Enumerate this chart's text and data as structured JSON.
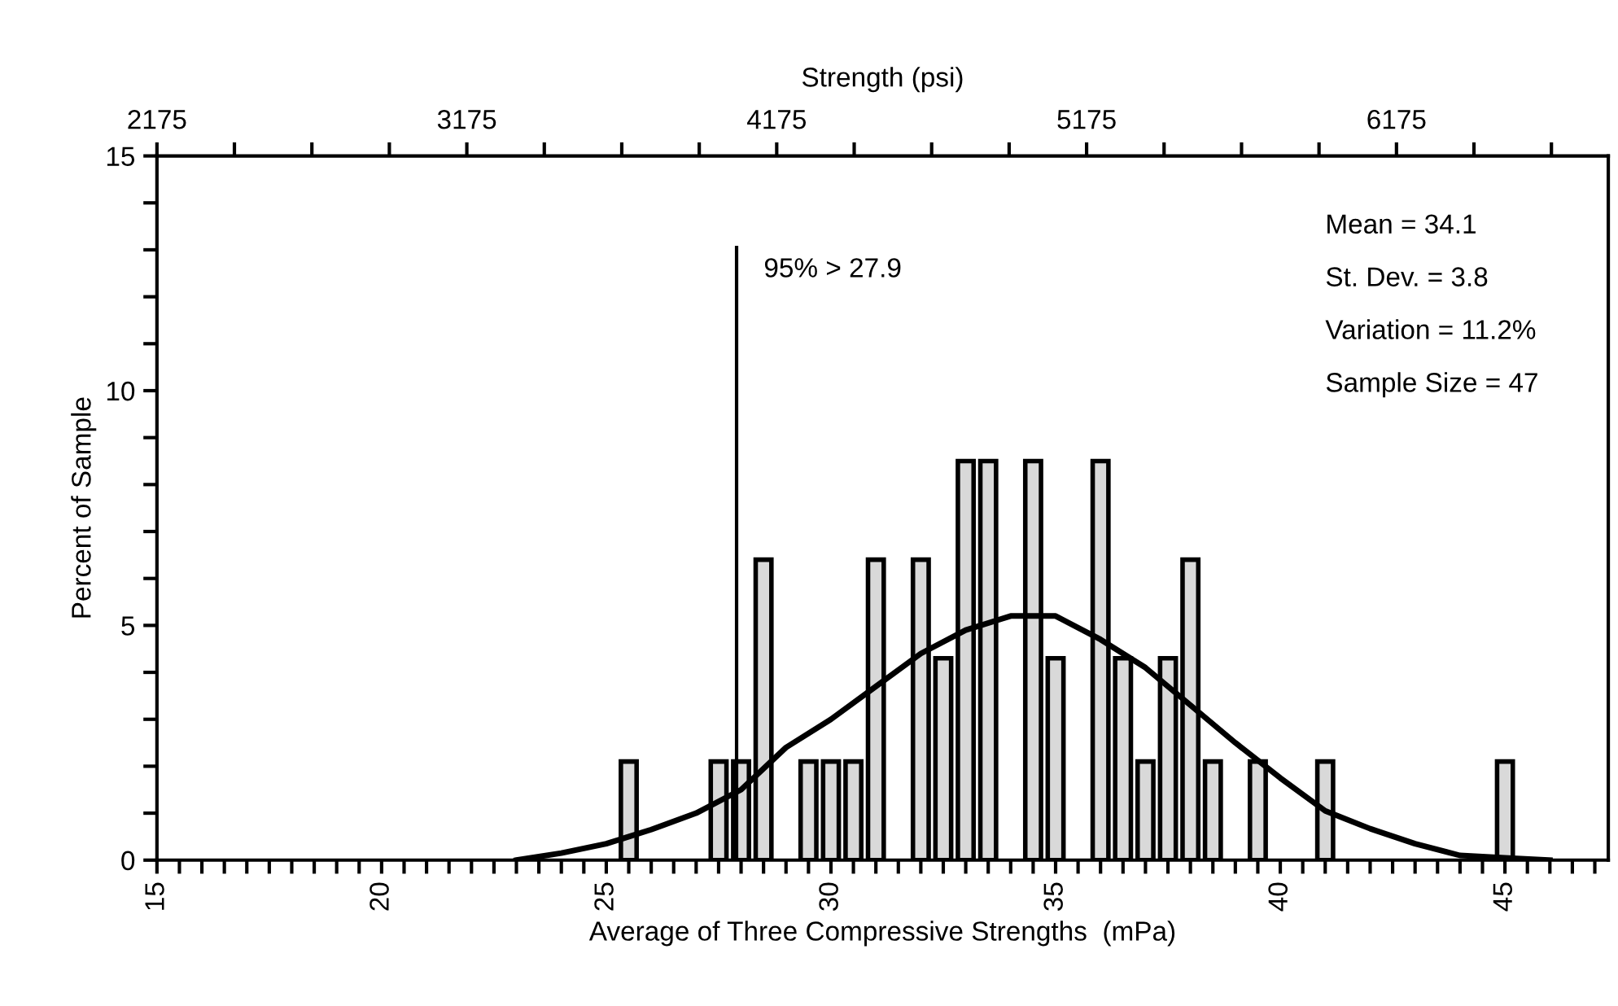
{
  "chart_data": {
    "type": "bar",
    "xlabel": "Average of Three Compressive Strengths  (mPa)",
    "ylabel": "Percent of Sample",
    "x2label": "Strength (psi)",
    "x": [
      25.5,
      27.5,
      28,
      28.5,
      29.5,
      30,
      30.5,
      31,
      32,
      32.5,
      33,
      33.5,
      34.5,
      35,
      36,
      36.5,
      37,
      37.5,
      38,
      38.5,
      39.5,
      41,
      45
    ],
    "series": [
      {
        "color": "#d9d9d9",
        "values": [
          2.1,
          2.1,
          2.1,
          6.4,
          2.1,
          2.1,
          2.1,
          6.4,
          6.4,
          4.3,
          8.5,
          8.5,
          8.5,
          4.3,
          8.5,
          4.3,
          2.1,
          4.3,
          6.4,
          2.1,
          2.1,
          2.1,
          2.1
        ]
      },
      {
        "type": "line",
        "color": "#000000",
        "x": [
          23,
          24,
          25,
          26,
          27,
          28,
          29,
          30,
          31,
          32,
          33,
          34,
          35,
          36,
          37,
          38,
          39,
          40,
          41,
          42,
          43,
          44,
          45,
          46
        ],
        "values": [
          0,
          0.15,
          0.35,
          0.65,
          1.0,
          1.5,
          2.4,
          3.0,
          3.7,
          4.4,
          4.9,
          5.2,
          5.2,
          4.7,
          4.1,
          3.3,
          2.5,
          1.75,
          1.05,
          0.67,
          0.35,
          0.1,
          0.05,
          0
        ]
      }
    ],
    "xlim": [
      15,
      47.3
    ],
    "ylim": [
      0,
      15
    ],
    "x2lim": [
      2175,
      6858.5
    ],
    "xticks": [
      15,
      {
        "value": 15.5,
        "label": null
      },
      {
        "value": 16,
        "label": null
      },
      {
        "value": 16.5,
        "label": null
      },
      {
        "value": 17,
        "label": null
      },
      {
        "value": 17.5,
        "label": null
      },
      {
        "value": 18,
        "label": null
      },
      {
        "value": 18.5,
        "label": null
      },
      {
        "value": 19,
        "label": null
      },
      {
        "value": 19.5,
        "label": null
      },
      20,
      {
        "value": 20.5,
        "label": null
      },
      {
        "value": 21,
        "label": null
      },
      {
        "value": 21.5,
        "label": null
      },
      {
        "value": 22,
        "label": null
      },
      {
        "value": 22.5,
        "label": null
      },
      {
        "value": 23,
        "label": null
      },
      {
        "value": 23.5,
        "label": null
      },
      {
        "value": 24,
        "label": null
      },
      {
        "value": 24.5,
        "label": null
      },
      25,
      {
        "value": 25.5,
        "label": null
      },
      {
        "value": 26,
        "label": null
      },
      {
        "value": 26.5,
        "label": null
      },
      {
        "value": 27,
        "label": null
      },
      {
        "value": 27.5,
        "label": null
      },
      {
        "value": 28,
        "label": null
      },
      {
        "value": 28.5,
        "label": null
      },
      {
        "value": 29,
        "label": null
      },
      {
        "value": 29.5,
        "label": null
      },
      30,
      {
        "value": 30.5,
        "label": null
      },
      {
        "value": 31,
        "label": null
      },
      {
        "value": 31.5,
        "label": null
      },
      {
        "value": 32,
        "label": null
      },
      {
        "value": 32.5,
        "label": null
      },
      {
        "value": 33,
        "label": null
      },
      {
        "value": 33.5,
        "label": null
      },
      {
        "value": 34,
        "label": null
      },
      {
        "value": 34.5,
        "label": null
      },
      35,
      {
        "value": 35.5,
        "label": null
      },
      {
        "value": 36,
        "label": null
      },
      {
        "value": 36.5,
        "label": null
      },
      {
        "value": 37,
        "label": null
      },
      {
        "value": 37.5,
        "label": null
      },
      {
        "value": 38,
        "label": null
      },
      {
        "value": 38.5,
        "label": null
      },
      {
        "value": 39,
        "label": null
      },
      {
        "value": 39.5,
        "label": null
      },
      40,
      {
        "value": 40.5,
        "label": null
      },
      {
        "value": 41,
        "label": null
      },
      {
        "value": 41.5,
        "label": null
      },
      {
        "value": 42,
        "label": null
      },
      {
        "value": 42.5,
        "label": null
      },
      {
        "value": 43,
        "label": null
      },
      {
        "value": 43.5,
        "label": null
      },
      {
        "value": 44,
        "label": null
      },
      {
        "value": 44.5,
        "label": null
      },
      45,
      {
        "value": 45.5,
        "label": null
      },
      {
        "value": 46,
        "label": null
      },
      {
        "value": 46.5,
        "label": null
      },
      {
        "value": 47,
        "label": null
      }
    ],
    "x2ticks": [
      2175,
      {
        "value": 2425,
        "label": null
      },
      {
        "value": 2675,
        "label": null
      },
      {
        "value": 2925,
        "label": null
      },
      3175,
      {
        "value": 3425,
        "label": null
      },
      {
        "value": 3675,
        "label": null
      },
      {
        "value": 3925,
        "label": null
      },
      4175,
      {
        "value": 4425,
        "label": null
      },
      {
        "value": 4675,
        "label": null
      },
      {
        "value": 4925,
        "label": null
      },
      5175,
      {
        "value": 5425,
        "label": null
      },
      {
        "value": 5675,
        "label": null
      },
      {
        "value": 5925,
        "label": null
      },
      6175,
      {
        "value": 6425,
        "label": null
      },
      {
        "value": 6675,
        "label": null
      }
    ],
    "yticks": [
      0,
      {
        "value": 1,
        "label": null
      },
      {
        "value": 2,
        "label": null
      },
      {
        "value": 3,
        "label": null
      },
      {
        "value": 4,
        "label": null
      },
      5,
      {
        "value": 6,
        "label": null
      },
      {
        "value": 7,
        "label": null
      },
      {
        "value": 8,
        "label": null
      },
      {
        "value": 9,
        "label": null
      },
      10,
      {
        "value": 11,
        "label": null
      },
      {
        "value": 12,
        "label": null
      },
      {
        "value": 13,
        "label": null
      },
      {
        "value": 14,
        "label": null
      },
      15
    ],
    "ref_lines": [
      {
        "axis": "x",
        "value": 27.9,
        "label": "95% > 27.9",
        "color": "#000000"
      }
    ],
    "annotations": [
      "Mean = 34.1",
      "St. Dev. = 3.8",
      "Variation = 11.2%",
      "Sample Size = 47"
    ],
    "grid": false,
    "legend": false
  }
}
